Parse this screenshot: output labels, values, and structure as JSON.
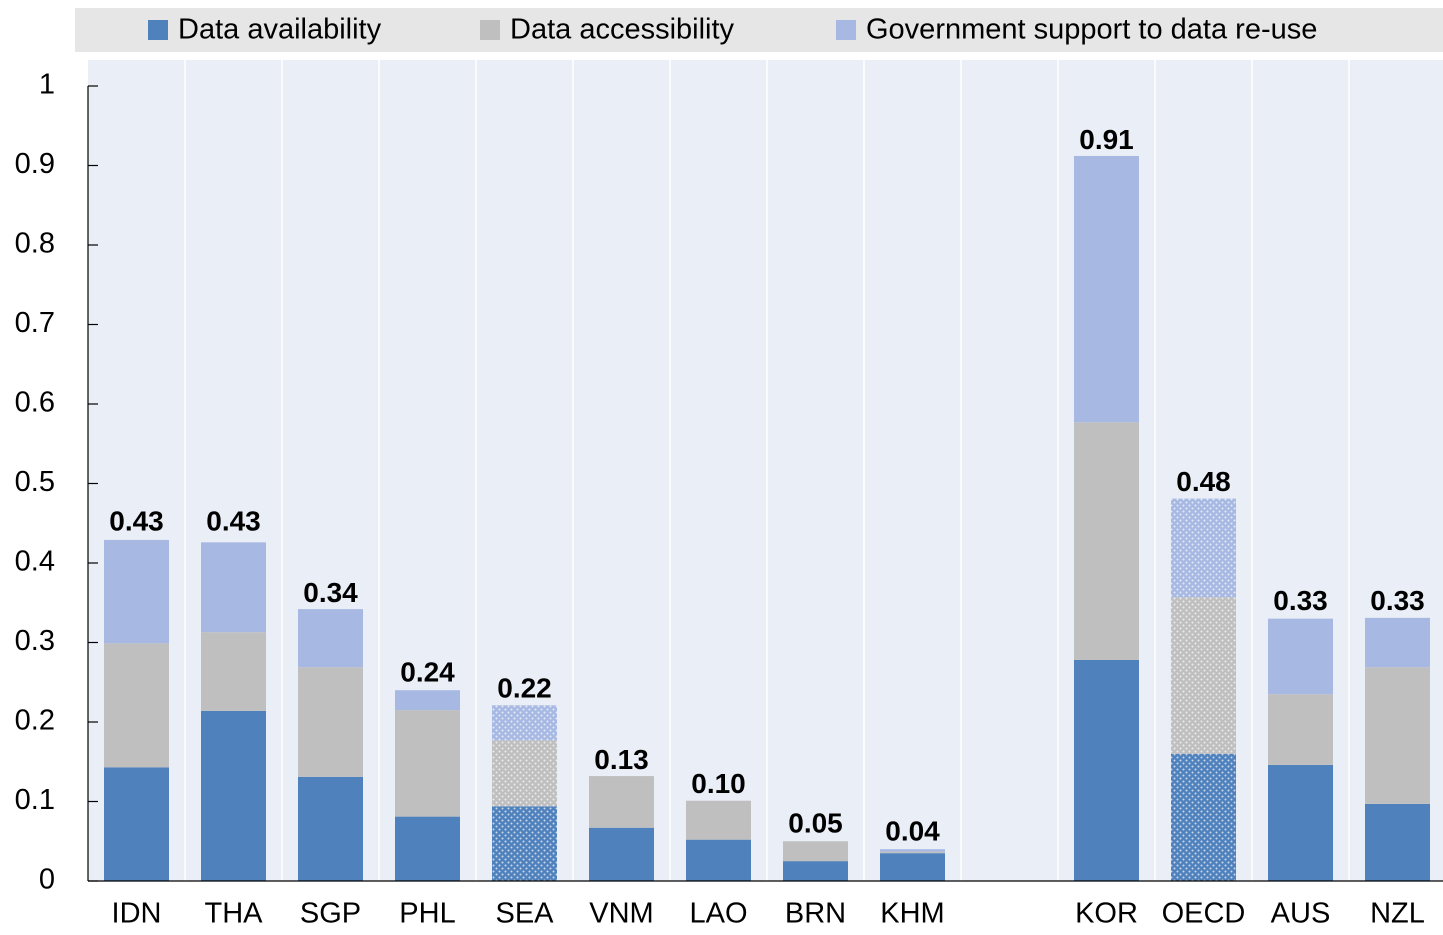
{
  "chart_data": {
    "type": "stacked_bar",
    "categories": [
      "IDN",
      "THA",
      "SGP",
      "PHL",
      "SEA",
      "VNM",
      "LAO",
      "BRN",
      "KHM",
      null,
      "KOR",
      "OECD",
      "AUS",
      "NZL"
    ],
    "series": [
      {
        "name": "Data availability",
        "color": "#4f81bd",
        "values": [
          0.143,
          0.214,
          0.131,
          0.081,
          0.094,
          0.067,
          0.052,
          0.025,
          0.035,
          null,
          0.278,
          0.16,
          0.146,
          0.097
        ]
      },
      {
        "name": "Data accessibility",
        "color": "#bfbfbf",
        "values": [
          0.156,
          0.099,
          0.138,
          0.134,
          0.083,
          0.065,
          0.049,
          0.025,
          0.002,
          null,
          0.299,
          0.197,
          0.089,
          0.172
        ]
      },
      {
        "name": "Government support to data re-use",
        "color": "#a7b9e3",
        "values": [
          0.13,
          0.113,
          0.073,
          0.025,
          0.044,
          0,
          0,
          0,
          0.003,
          null,
          0.335,
          0.124,
          0.095,
          0.062
        ]
      }
    ],
    "totals": {
      "values": [
        0.43,
        0.43,
        0.34,
        0.24,
        0.22,
        0.13,
        0.1,
        0.05,
        0.04,
        null,
        0.91,
        0.48,
        0.33,
        0.33
      ],
      "value_labels": [
        "0.43",
        "0.43",
        "0.34",
        "0.24",
        "0.22",
        "0.13",
        "0.10",
        "0.05",
        "0.04",
        null,
        "0.91",
        "0.48",
        "0.33",
        "0.33"
      ]
    },
    "dotted_categories": [
      4,
      11
    ],
    "ylim": [
      0,
      1
    ],
    "yticks": [
      0,
      0.1,
      0.2,
      0.3,
      0.4,
      0.5,
      0.6,
      0.7,
      0.8,
      0.9,
      1
    ],
    "legend": "top"
  }
}
